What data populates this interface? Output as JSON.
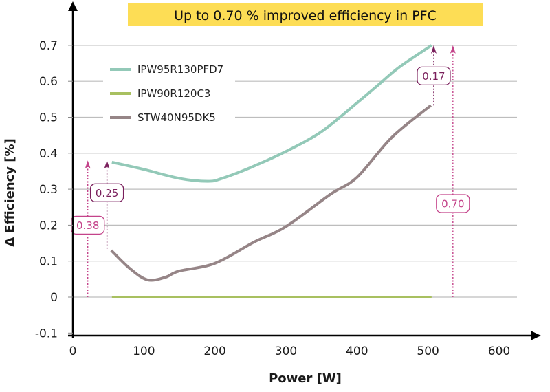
{
  "chart_data": {
    "type": "line",
    "title": "Up to 0.70 % improved efficiency in PFC",
    "xlabel": "Power [W]",
    "ylabel": "Δ Efficiency [%]",
    "xlim": [
      0,
      600
    ],
    "ylim": [
      -0.1,
      0.7
    ],
    "xticks": [
      "0",
      "100",
      "200",
      "300",
      "400",
      "500",
      "600"
    ],
    "yticks": [
      "-0.1",
      "0",
      "0.1",
      "0.2",
      "0.3",
      "0.4",
      "0.5",
      "0.6",
      "0.7"
    ],
    "grid": "horizontal",
    "legend_position": "top-left",
    "title_background": "#fddd55",
    "series": [
      {
        "name": "IPW95R130PFD7",
        "color": "#93c9b8",
        "x": [
          55,
          100,
          150,
          190,
          210,
          250,
          300,
          350,
          400,
          430,
          460,
          505
        ],
        "y": [
          0.375,
          0.355,
          0.33,
          0.322,
          0.33,
          0.36,
          0.405,
          0.46,
          0.54,
          0.59,
          0.64,
          0.7
        ]
      },
      {
        "name": "IPW90R120C3",
        "color": "#a8c060",
        "x": [
          55,
          505
        ],
        "y": [
          0,
          0
        ]
      },
      {
        "name": "STW40N95DK5",
        "color": "#968587",
        "x": [
          54,
          80,
          105,
          130,
          149,
          200,
          255,
          299,
          362,
          400,
          449,
          504
        ],
        "y": [
          0.13,
          0.08,
          0.048,
          0.055,
          0.072,
          0.094,
          0.153,
          0.195,
          0.285,
          0.333,
          0.444,
          0.533
        ]
      }
    ],
    "annotations": [
      {
        "label": "0.38",
        "x": 21,
        "from": 0,
        "to": 0.38,
        "label_y": 0.2,
        "color": "#c4438a"
      },
      {
        "label": "0.25",
        "x": 48,
        "from": 0.134,
        "to": 0.38,
        "label_y": 0.29,
        "color": "#7a1f5c"
      },
      {
        "label": "0.17",
        "x": 508,
        "from": 0.533,
        "to": 0.7,
        "label_y": 0.615,
        "color": "#7a1f5c"
      },
      {
        "label": "0.70",
        "x": 535,
        "from": 0,
        "to": 0.7,
        "label_y": 0.26,
        "color": "#c4438a"
      }
    ]
  }
}
